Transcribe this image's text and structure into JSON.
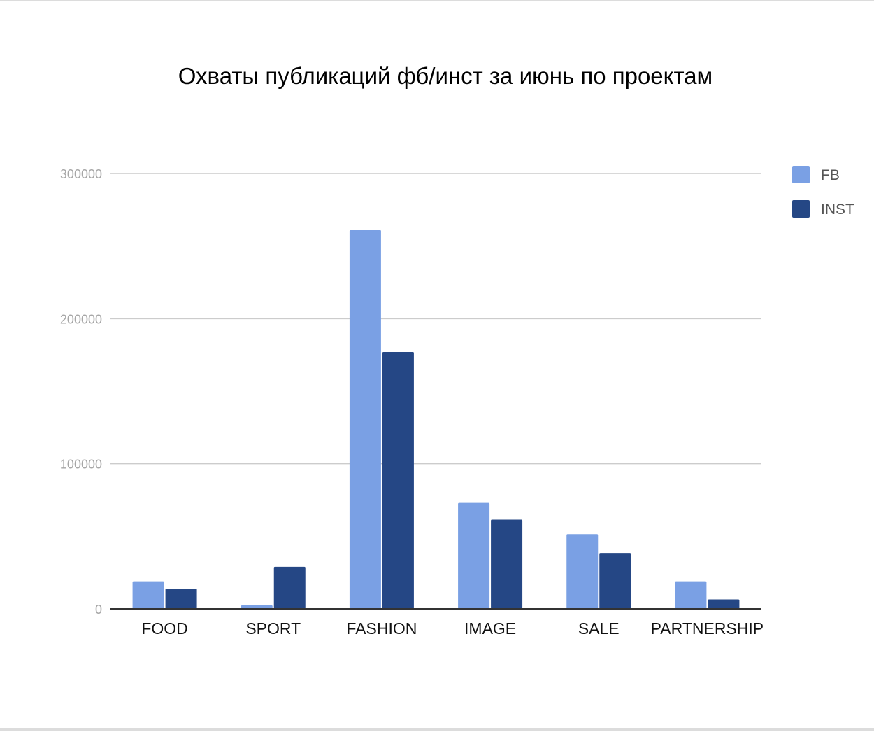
{
  "chart_data": {
    "type": "bar",
    "title": "Охваты публикаций фб/инст за июнь по проектам",
    "xlabel": "",
    "ylabel": "",
    "categories": [
      "FOOD",
      "SPORT",
      "FASHION",
      "IMAGE",
      "SALE",
      "PARTNERSHIP"
    ],
    "series": [
      {
        "name": "FB",
        "color": "#7aa0e4",
        "values": [
          19000,
          2500,
          261000,
          73000,
          51500,
          19000
        ]
      },
      {
        "name": "INST",
        "color": "#254785",
        "values": [
          14000,
          29000,
          177000,
          61500,
          38500,
          6500
        ]
      }
    ],
    "ylim": [
      0,
      300000
    ],
    "yticks": [
      0,
      100000,
      200000,
      300000
    ],
    "ytick_labels": [
      "0",
      "100000",
      "200000",
      "300000"
    ],
    "grid": true,
    "legend_position": "right"
  }
}
